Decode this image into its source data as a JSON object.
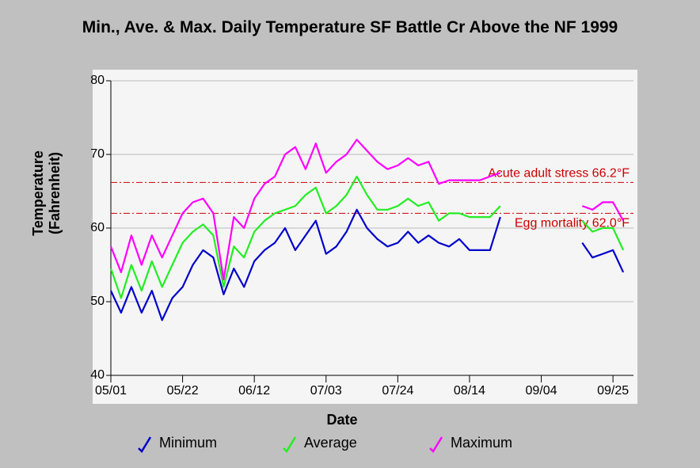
{
  "chart_data": {
    "type": "line",
    "title": "Min., Ave. & Max. Daily Temperature SF Battle Cr Above the NF 1999",
    "xlabel": "Date",
    "ylabel": "Temperature (Fahrenheit)",
    "x": [
      "05/01",
      "05/04",
      "05/07",
      "05/10",
      "05/13",
      "05/16",
      "05/19",
      "05/22",
      "05/25",
      "05/28",
      "05/31",
      "06/03",
      "06/06",
      "06/09",
      "06/12",
      "06/15",
      "06/18",
      "06/21",
      "06/24",
      "06/27",
      "06/30",
      "07/03",
      "07/06",
      "07/09",
      "07/12",
      "07/15",
      "07/18",
      "07/21",
      "07/24",
      "07/27",
      "07/30",
      "08/02",
      "08/05",
      "08/08",
      "08/11",
      "08/14",
      "08/17",
      "08/20",
      "08/23",
      "09/04",
      "09/16",
      "09/19",
      "09/22",
      "09/25",
      "09/28"
    ],
    "series": [
      {
        "name": "Minimum",
        "color": "#0000cc",
        "values": [
          51.5,
          48.5,
          52,
          48.5,
          51.5,
          47.5,
          50.5,
          52,
          55,
          57,
          56,
          51,
          54.5,
          52,
          55.5,
          57,
          58,
          60,
          57,
          59,
          61,
          56.5,
          57.5,
          59.5,
          62.5,
          60,
          58.5,
          57.5,
          58,
          59.5,
          58,
          59,
          58,
          57.5,
          58.5,
          57,
          57,
          57,
          61.5,
          null,
          58,
          56,
          56.5,
          57,
          54
        ]
      },
      {
        "name": "Average",
        "color": "#22ee22",
        "values": [
          54.5,
          50.5,
          55,
          51.5,
          55.5,
          52,
          55,
          58,
          59.5,
          60.5,
          59,
          52,
          57.5,
          56,
          59.5,
          61,
          62,
          62.5,
          63,
          64.5,
          65.5,
          62,
          63,
          64.5,
          67,
          64.5,
          62.5,
          62.5,
          63,
          64,
          63,
          63.5,
          61,
          62,
          62,
          61.5,
          61.5,
          61.5,
          63,
          null,
          61,
          59.5,
          60,
          60,
          57
        ]
      },
      {
        "name": "Maximum",
        "color": "#ff00ff",
        "values": [
          57.5,
          54,
          59,
          55,
          59,
          56,
          59,
          62,
          63.5,
          64,
          62,
          53,
          61.5,
          60,
          64,
          66,
          67,
          70,
          71,
          68,
          71.5,
          67.5,
          69,
          70,
          72,
          70.5,
          69,
          68,
          68.5,
          69.5,
          68.5,
          69,
          66,
          66.5,
          66.5,
          66.5,
          66.5,
          67,
          67.5,
          null,
          63,
          62.5,
          63.5,
          63.5,
          61
        ]
      }
    ],
    "xlim": [
      "05/01",
      "10/01"
    ],
    "xticks": [
      "05/01",
      "05/22",
      "06/12",
      "07/03",
      "07/24",
      "08/14",
      "09/04",
      "09/25"
    ],
    "ylim": [
      40,
      80
    ],
    "yticks": [
      40,
      50,
      60,
      70,
      80
    ],
    "grid": true,
    "reference_lines": [
      {
        "value": 66.2,
        "label": "Acute adult stress 66.2°F",
        "color": "#cc0000"
      },
      {
        "value": 62.0,
        "label": "Egg mortality 62.0°F",
        "color": "#cc0000"
      }
    ],
    "legend": "bottom"
  }
}
